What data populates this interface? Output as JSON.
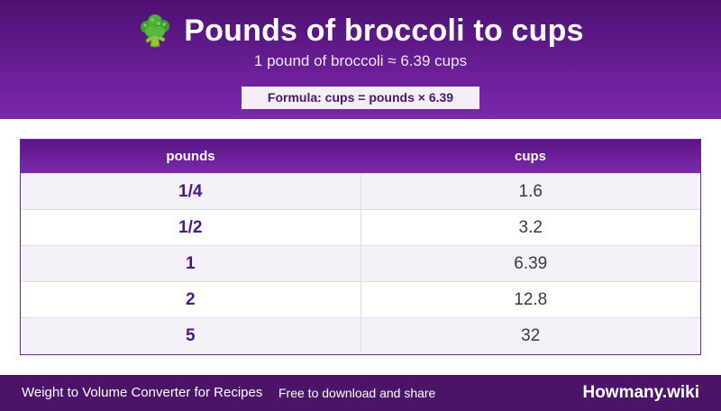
{
  "header": {
    "icon": "broccoli-icon",
    "title": "Pounds of broccoli to cups",
    "subtitle": "1 pound of broccoli ≈ 6.39 cups",
    "formula": "Formula: cups = pounds × 6.39"
  },
  "table": {
    "columns": [
      "pounds",
      "cups"
    ],
    "rows": [
      {
        "pounds": "1/4",
        "cups": "1.6"
      },
      {
        "pounds": "1/2",
        "cups": "3.2"
      },
      {
        "pounds": "1",
        "cups": "6.39"
      },
      {
        "pounds": "2",
        "cups": "12.8"
      },
      {
        "pounds": "5",
        "cups": "32"
      }
    ]
  },
  "footer": {
    "left_text": "Weight to Volume Converter for Recipes",
    "mid_text": "Free to download and share",
    "brand": "Howmany.wiki"
  },
  "colors": {
    "header_purple": "#6a1f97",
    "footer_purple": "#4b1468",
    "accent_text": "#4d1878"
  }
}
